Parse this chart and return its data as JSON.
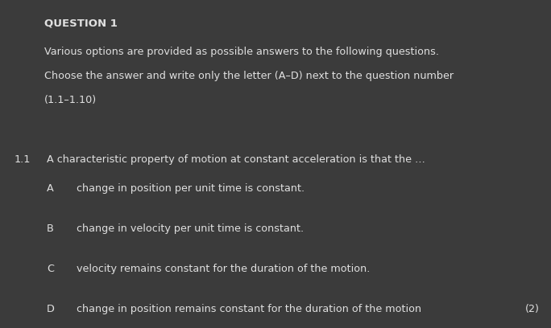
{
  "background_color": "#3b3b3b",
  "text_color": "#e0e0e0",
  "title": "QUESTION 1",
  "intro_lines": [
    "Various options are provided as possible answers to the following questions.",
    "Choose the answer and write only the letter (A–D) next to the question number",
    "(1.1–1.10)"
  ],
  "question_number": "1.1",
  "question_text": "A characteristic property of motion at constant acceleration is that the …",
  "options": [
    {
      "letter": "A",
      "text": "change in position per unit time is constant."
    },
    {
      "letter": "B",
      "text": "change in velocity per unit time is constant."
    },
    {
      "letter": "C",
      "text": "velocity remains constant for the duration of the motion."
    },
    {
      "letter": "D",
      "text": "change in position remains constant for the duration of the motion"
    }
  ],
  "marks_text": "(2)",
  "font_size_title": 9.5,
  "font_size_intro": 9.2,
  "font_size_question": 9.2,
  "font_size_options": 9.2,
  "font_size_marks": 9.2
}
